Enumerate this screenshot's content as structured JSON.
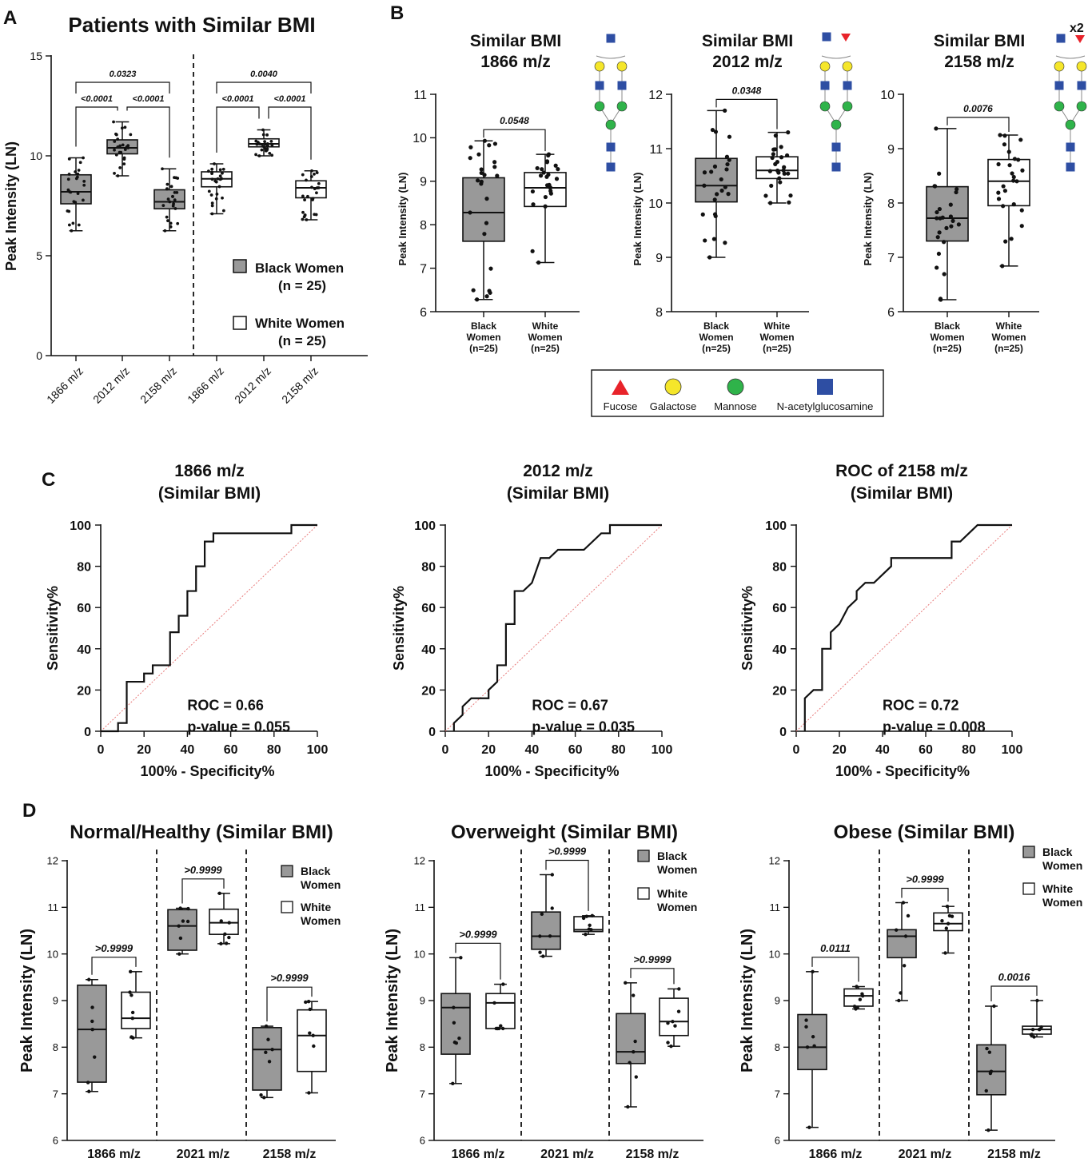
{
  "panel_labels": {
    "a": "A",
    "b": "B",
    "c": "C",
    "d": "D"
  },
  "colors": {
    "black_women": "#999999",
    "white_women": "#ffffff",
    "fucose": "#e8232a",
    "galactose": "#f5e62a",
    "mannose": "#2fb34a",
    "glcnac": "#2e4ea3"
  },
  "glycan_legend": [
    "Fucose",
    "Galactose",
    "Mannose",
    "N-acetylglucosamine"
  ],
  "glycan_icons": [
    "glycan-1866",
    "glycan-2012",
    "glycan-2158"
  ],
  "glycan_multiplier": "x2",
  "chart_data": [
    {
      "id": "A",
      "type": "box",
      "title": "Patients with Similar BMI",
      "ylabel": "Peak  Intensity (LN)",
      "ylim": [
        0,
        15
      ],
      "yticks": [
        "0",
        "5",
        "10",
        "15"
      ],
      "categories": [
        "1866 m/z",
        "2012 m/z",
        "2158 m/z",
        "1866 m/z",
        "2012 m/z",
        "2158 m/z"
      ],
      "legend": [
        {
          "label": "Black Women",
          "n": "(n = 25)"
        },
        {
          "label": "White  Women",
          "n": "(n = 25)"
        }
      ],
      "groups": [
        {
          "series": "Black Women",
          "boxes": [
            {
              "min": 6.25,
              "q1": 7.6,
              "median": 8.2,
              "q3": 9.05,
              "max": 9.9
            },
            {
              "min": 9.0,
              "q1": 10.1,
              "median": 10.4,
              "q3": 10.8,
              "max": 11.7
            },
            {
              "min": 6.25,
              "q1": 7.35,
              "median": 7.7,
              "q3": 8.3,
              "max": 9.35
            }
          ],
          "annotations": [
            {
              "from": 0,
              "to": 2,
              "text": "0.0323",
              "level": 2
            },
            {
              "from": 0,
              "to": 1,
              "text": "<0.0001",
              "level": 1
            },
            {
              "from": 1,
              "to": 2,
              "text": "<0.0001",
              "level": 1
            }
          ]
        },
        {
          "series": "White Women",
          "boxes": [
            {
              "min": 7.1,
              "q1": 8.45,
              "median": 8.85,
              "q3": 9.2,
              "max": 9.6
            },
            {
              "min": 10.0,
              "q1": 10.45,
              "median": 10.6,
              "q3": 10.85,
              "max": 11.3
            },
            {
              "min": 6.8,
              "q1": 7.9,
              "median": 8.4,
              "q3": 8.75,
              "max": 9.25
            }
          ],
          "annotations": [
            {
              "from": 0,
              "to": 2,
              "text": "0.0040",
              "level": 2
            },
            {
              "from": 0,
              "to": 1,
              "text": "<0.0001",
              "level": 1
            },
            {
              "from": 1,
              "to": 2,
              "text": "<0.0001",
              "level": 1
            }
          ]
        }
      ]
    },
    {
      "id": "B1",
      "type": "box",
      "title": [
        "Similar BMI",
        "1866 m/z"
      ],
      "ylabel": "Peak  Intensity (LN)",
      "ylim": [
        6,
        11
      ],
      "yticks": [
        "6",
        "7",
        "8",
        "9",
        "10",
        "11"
      ],
      "categories": [
        [
          "Black",
          "Women",
          "(n=25)"
        ],
        [
          "White",
          "Women",
          "(n=25)"
        ]
      ],
      "boxes": [
        {
          "min": 6.28,
          "q1": 7.62,
          "median": 8.28,
          "q3": 9.08,
          "max": 9.93
        },
        {
          "min": 7.13,
          "q1": 8.42,
          "median": 8.85,
          "q3": 9.2,
          "max": 9.62
        }
      ],
      "annotation": "0.0548"
    },
    {
      "id": "B2",
      "type": "box",
      "title": [
        "Similar BMI",
        "2012 m/z"
      ],
      "ylabel": "Peak  Intensity (LN)",
      "ylim": [
        8,
        12
      ],
      "yticks": [
        "8",
        "9",
        "10",
        "11",
        "12"
      ],
      "categories": [
        [
          "Black",
          "Women",
          "(n=25)"
        ],
        [
          "White",
          "Women",
          "(n=25)"
        ]
      ],
      "boxes": [
        {
          "min": 9.0,
          "q1": 10.02,
          "median": 10.32,
          "q3": 10.82,
          "max": 11.7
        },
        {
          "min": 10.0,
          "q1": 10.45,
          "median": 10.6,
          "q3": 10.85,
          "max": 11.3
        }
      ],
      "annotation": "0.0348"
    },
    {
      "id": "B3",
      "type": "box",
      "title": [
        "Similar BMI",
        "2158 m/z"
      ],
      "ylabel": "Peak  Intensity (LN)",
      "ylim": [
        6,
        10
      ],
      "yticks": [
        "6",
        "7",
        "8",
        "9",
        "10"
      ],
      "categories": [
        [
          "Black",
          "Women",
          "(n=25)"
        ],
        [
          "White",
          "Women",
          "(n=25)"
        ]
      ],
      "boxes": [
        {
          "min": 6.22,
          "q1": 7.3,
          "median": 7.72,
          "q3": 8.3,
          "max": 9.37
        },
        {
          "min": 6.84,
          "q1": 7.95,
          "median": 8.4,
          "q3": 8.8,
          "max": 9.25
        }
      ],
      "annotation": "0.0076"
    },
    {
      "id": "C1",
      "type": "line",
      "title": [
        "1866 m/z",
        "(Similar BMI)"
      ],
      "xlabel": "100% - Specificity%",
      "ylabel": "Sensitivity%",
      "xlim": [
        0,
        100
      ],
      "ylim": [
        0,
        100
      ],
      "ticks": [
        "0",
        "20",
        "40",
        "60",
        "80",
        "100"
      ],
      "roc_text": "ROC = 0.66",
      "p_text": "p-value = 0.055",
      "points": [
        [
          0,
          0
        ],
        [
          8,
          0
        ],
        [
          8,
          4
        ],
        [
          12,
          4
        ],
        [
          12,
          24
        ],
        [
          20,
          24
        ],
        [
          20,
          28
        ],
        [
          24,
          28
        ],
        [
          24,
          32
        ],
        [
          32,
          32
        ],
        [
          32,
          36
        ],
        [
          32,
          48
        ],
        [
          36,
          48
        ],
        [
          36,
          56
        ],
        [
          40,
          56
        ],
        [
          40,
          68
        ],
        [
          44,
          68
        ],
        [
          44,
          80
        ],
        [
          48,
          80
        ],
        [
          48,
          92
        ],
        [
          52,
          92
        ],
        [
          52,
          96
        ],
        [
          88,
          96
        ],
        [
          88,
          100
        ],
        [
          100,
          100
        ]
      ]
    },
    {
      "id": "C2",
      "type": "line",
      "title": [
        "2012 m/z",
        "(Similar BMI)"
      ],
      "xlabel": "100% - Specificity%",
      "ylabel": "Sensitivity%",
      "xlim": [
        0,
        100
      ],
      "ylim": [
        0,
        100
      ],
      "ticks": [
        "0",
        "20",
        "40",
        "60",
        "80",
        "100"
      ],
      "roc_text": "ROC = 0.67",
      "p_text": "p-value = 0.035",
      "points": [
        [
          4,
          0
        ],
        [
          4,
          4
        ],
        [
          8,
          8
        ],
        [
          8,
          12
        ],
        [
          12,
          16
        ],
        [
          20,
          16
        ],
        [
          20,
          20
        ],
        [
          24,
          24
        ],
        [
          24,
          32
        ],
        [
          28,
          32
        ],
        [
          28,
          52
        ],
        [
          32,
          52
        ],
        [
          32,
          68
        ],
        [
          36,
          68
        ],
        [
          40,
          72
        ],
        [
          44,
          84
        ],
        [
          48,
          84
        ],
        [
          52,
          88
        ],
        [
          64,
          88
        ],
        [
          68,
          92
        ],
        [
          72,
          96
        ],
        [
          76,
          96
        ],
        [
          76,
          100
        ],
        [
          100,
          100
        ]
      ]
    },
    {
      "id": "C3",
      "type": "line",
      "title": [
        "ROC of 2158 m/z",
        "(Similar BMI)"
      ],
      "xlabel": "100% - Specificity%",
      "ylabel": "Sensitivity%",
      "xlim": [
        0,
        100
      ],
      "ylim": [
        0,
        100
      ],
      "ticks": [
        "0",
        "20",
        "40",
        "60",
        "80",
        "100"
      ],
      "roc_text": "ROC = 0.72",
      "p_text": "p-value = 0.008",
      "points": [
        [
          4,
          0
        ],
        [
          4,
          16
        ],
        [
          8,
          20
        ],
        [
          12,
          20
        ],
        [
          12,
          40
        ],
        [
          16,
          40
        ],
        [
          16,
          48
        ],
        [
          20,
          52
        ],
        [
          24,
          60
        ],
        [
          28,
          64
        ],
        [
          28,
          68
        ],
        [
          32,
          72
        ],
        [
          36,
          72
        ],
        [
          40,
          76
        ],
        [
          44,
          80
        ],
        [
          44,
          84
        ],
        [
          72,
          84
        ],
        [
          72,
          92
        ],
        [
          76,
          92
        ],
        [
          80,
          96
        ],
        [
          84,
          100
        ],
        [
          100,
          100
        ]
      ]
    },
    {
      "id": "D1",
      "type": "box",
      "title": "Normal/Healthy (Similar BMI)",
      "ylabel": "Peak  Intensity (LN)",
      "ylim": [
        6,
        12
      ],
      "yticks": [
        "6",
        "7",
        "8",
        "9",
        "10",
        "11",
        "12"
      ],
      "categories": [
        "1866 m/z",
        "2021 m/z",
        "2158 m/z"
      ],
      "legend": [
        [
          "Black",
          "Women"
        ],
        [
          "White",
          "Women"
        ]
      ],
      "pairs": [
        {
          "black": {
            "min": 7.05,
            "q1": 7.25,
            "median": 8.38,
            "q3": 9.33,
            "max": 9.45
          },
          "white": {
            "min": 8.2,
            "q1": 8.4,
            "median": 8.62,
            "q3": 9.18,
            "max": 9.62
          },
          "p": ">0.9999"
        },
        {
          "black": {
            "min": 10.0,
            "q1": 10.08,
            "median": 10.6,
            "q3": 10.95,
            "max": 10.98
          },
          "white": {
            "min": 10.22,
            "q1": 10.42,
            "median": 10.67,
            "q3": 10.96,
            "max": 11.3
          },
          "p": ">0.9999"
        },
        {
          "black": {
            "min": 6.92,
            "q1": 7.08,
            "median": 7.95,
            "q3": 8.42,
            "max": 8.45
          },
          "white": {
            "min": 7.02,
            "q1": 7.48,
            "median": 8.25,
            "q3": 8.8,
            "max": 8.98
          },
          "p": ">0.9999"
        }
      ]
    },
    {
      "id": "D2",
      "type": "box",
      "title": "Overweight (Similar BMI)",
      "ylabel": "Peak  Intensity (LN)",
      "ylim": [
        6,
        12
      ],
      "yticks": [
        "6",
        "7",
        "8",
        "9",
        "10",
        "11",
        "12"
      ],
      "categories": [
        "1866 m/z",
        "2021 m/z",
        "2158 m/z"
      ],
      "legend": [
        [
          "Black",
          "Women"
        ],
        [
          "White",
          "Women"
        ]
      ],
      "pairs": [
        {
          "black": {
            "min": 7.22,
            "q1": 7.85,
            "median": 8.85,
            "q3": 9.15,
            "max": 9.92
          },
          "white": {
            "min": 8.4,
            "q1": 8.4,
            "median": 8.95,
            "q3": 9.15,
            "max": 9.35
          },
          "p": ">0.9999"
        },
        {
          "black": {
            "min": 9.95,
            "q1": 10.1,
            "median": 10.38,
            "q3": 10.9,
            "max": 11.7
          },
          "white": {
            "min": 10.42,
            "q1": 10.48,
            "median": 10.52,
            "q3": 10.8,
            "max": 10.82
          },
          "p": ">0.9999"
        },
        {
          "black": {
            "min": 6.72,
            "q1": 7.65,
            "median": 7.9,
            "q3": 8.72,
            "max": 9.38
          },
          "white": {
            "min": 8.02,
            "q1": 8.25,
            "median": 8.55,
            "q3": 9.05,
            "max": 9.25
          },
          "p": ">0.9999"
        }
      ]
    },
    {
      "id": "D3",
      "type": "box",
      "title": "Obese (Similar BMI)",
      "ylabel": "Peak  Intensity (LN)",
      "ylim": [
        6,
        12
      ],
      "yticks": [
        "6",
        "7",
        "8",
        "9",
        "10",
        "11",
        "12"
      ],
      "categories": [
        "1866 m/z",
        "2021 m/z",
        "2158 m/z"
      ],
      "legend": [
        [
          "Black",
          "Women"
        ],
        [
          "White",
          "Women"
        ]
      ],
      "pairs": [
        {
          "black": {
            "min": 6.28,
            "q1": 7.52,
            "median": 8.0,
            "q3": 8.7,
            "max": 9.62
          },
          "white": {
            "min": 8.82,
            "q1": 8.88,
            "median": 9.1,
            "q3": 9.25,
            "max": 9.3
          },
          "p": "0.0111"
        },
        {
          "black": {
            "min": 9.0,
            "q1": 9.92,
            "median": 10.38,
            "q3": 10.52,
            "max": 11.1
          },
          "white": {
            "min": 10.02,
            "q1": 10.5,
            "median": 10.65,
            "q3": 10.88,
            "max": 11.02
          },
          "p": ">0.9999"
        },
        {
          "black": {
            "min": 6.22,
            "q1": 6.98,
            "median": 7.48,
            "q3": 8.05,
            "max": 8.88
          },
          "white": {
            "min": 8.22,
            "q1": 8.28,
            "median": 8.38,
            "q3": 8.45,
            "max": 9.0
          },
          "p": "0.0016"
        }
      ]
    }
  ]
}
